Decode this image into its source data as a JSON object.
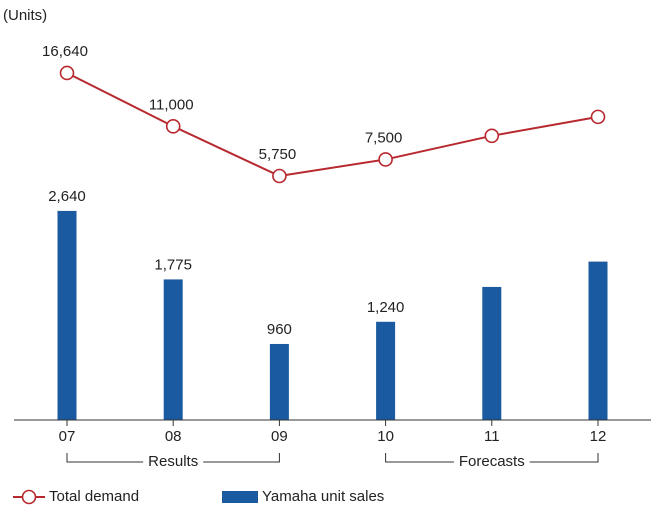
{
  "chart_data": {
    "type": "bar_line",
    "unit_label": "(Units)",
    "categories": [
      "07",
      "08",
      "09",
      "10",
      "11",
      "12"
    ],
    "series": [
      {
        "name": "Total demand",
        "type": "line",
        "color": "#b8292f",
        "values": [
          16640,
          11000,
          5750,
          7500,
          10000,
          12000
        ],
        "value_labels": [
          "16,640",
          "11,000",
          "5,750",
          "7,500",
          null,
          null
        ]
      },
      {
        "name": "Yamaha unit sales",
        "type": "bar",
        "color": "#1a5aa0",
        "values": [
          2640,
          1775,
          960,
          1240,
          1680,
          2000
        ],
        "value_labels": [
          "2,640",
          "1,775",
          "960",
          "1,240",
          null,
          null
        ]
      }
    ],
    "groups": [
      {
        "label": "Results",
        "from": "07",
        "to": "09"
      },
      {
        "label": "Forecasts",
        "from": "10",
        "to": "12"
      }
    ]
  }
}
